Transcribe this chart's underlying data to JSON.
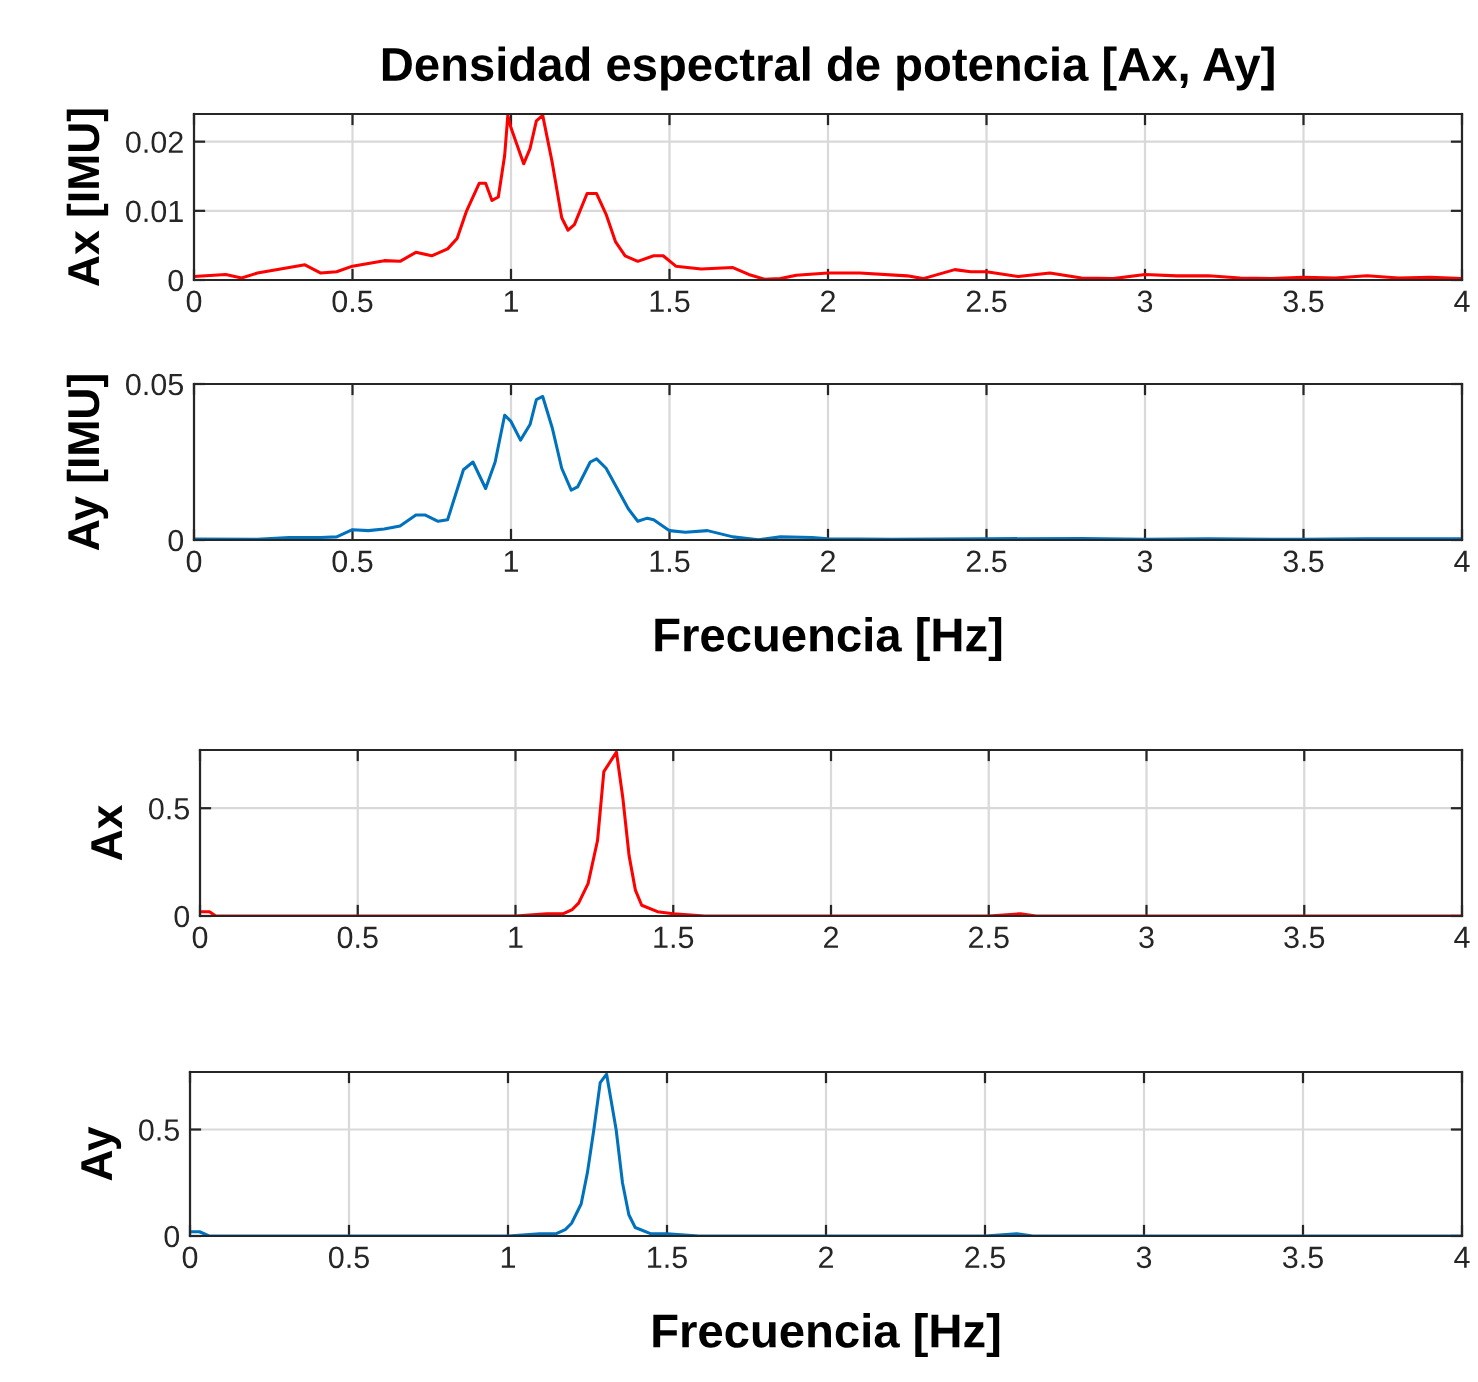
{
  "chart_data": [
    {
      "type": "line",
      "title": "Densidad espectral de potencia [Ax, Ay]",
      "ylabel": "Ax [IMU]",
      "xlim": [
        0,
        4
      ],
      "xticks": [
        0,
        0.5,
        1,
        1.5,
        2,
        2.5,
        3,
        3.5,
        4
      ],
      "ylim": [
        0,
        0.024
      ],
      "yticks": [
        0,
        0.01,
        0.02
      ],
      "grid": true,
      "x": [
        0,
        0.1,
        0.15,
        0.2,
        0.3,
        0.35,
        0.4,
        0.45,
        0.5,
        0.6,
        0.65,
        0.7,
        0.75,
        0.8,
        0.83,
        0.86,
        0.9,
        0.92,
        0.94,
        0.96,
        0.98,
        0.99,
        1.0,
        1.04,
        1.06,
        1.08,
        1.1,
        1.13,
        1.16,
        1.18,
        1.2,
        1.24,
        1.27,
        1.3,
        1.33,
        1.36,
        1.4,
        1.45,
        1.48,
        1.52,
        1.6,
        1.7,
        1.75,
        1.8,
        1.85,
        1.9,
        2.0,
        2.1,
        2.25,
        2.3,
        2.4,
        2.45,
        2.5,
        2.6,
        2.7,
        2.8,
        2.9,
        3.0,
        3.1,
        3.2,
        3.3,
        3.4,
        3.5,
        3.6,
        3.7,
        3.8,
        3.9,
        4.0
      ],
      "series": [
        {
          "color": "#ff0000",
          "values": [
            0.0005,
            0.0008,
            0.0003,
            0.001,
            0.0018,
            0.0022,
            0.001,
            0.0012,
            0.002,
            0.0028,
            0.0027,
            0.004,
            0.0035,
            0.0045,
            0.006,
            0.01,
            0.014,
            0.014,
            0.0115,
            0.012,
            0.018,
            0.0238,
            0.022,
            0.0168,
            0.019,
            0.023,
            0.0238,
            0.017,
            0.009,
            0.0072,
            0.008,
            0.0125,
            0.0125,
            0.0095,
            0.0055,
            0.0035,
            0.0027,
            0.0035,
            0.0035,
            0.002,
            0.0016,
            0.0018,
            0.0008,
            0.0001,
            0.0002,
            0.0007,
            0.001,
            0.001,
            0.0006,
            0.0002,
            0.0015,
            0.0012,
            0.0012,
            0.0005,
            0.001,
            0.0003,
            0.0002,
            0.0008,
            0.0006,
            0.0006,
            0.0003,
            0.0002,
            0.0004,
            0.0003,
            0.0006,
            0.0003,
            0.0004,
            0.0002
          ]
        }
      ]
    },
    {
      "type": "line",
      "ylabel": "Ay [IMU]",
      "xlabel": "Frecuencia [Hz]",
      "xlim": [
        0,
        4
      ],
      "xticks": [
        0,
        0.5,
        1,
        1.5,
        2,
        2.5,
        3,
        3.5,
        4
      ],
      "ylim": [
        0,
        0.05
      ],
      "yticks": [
        0,
        0.05
      ],
      "grid": true,
      "x": [
        0,
        0.2,
        0.3,
        0.4,
        0.45,
        0.5,
        0.55,
        0.6,
        0.65,
        0.7,
        0.73,
        0.77,
        0.8,
        0.85,
        0.88,
        0.92,
        0.95,
        0.98,
        1.0,
        1.03,
        1.06,
        1.08,
        1.1,
        1.13,
        1.16,
        1.19,
        1.21,
        1.25,
        1.27,
        1.3,
        1.37,
        1.4,
        1.43,
        1.45,
        1.5,
        1.55,
        1.62,
        1.7,
        1.78,
        1.85,
        1.95,
        2.0,
        2.2,
        2.5,
        2.8,
        3.0,
        3.2,
        3.5,
        3.7,
        4.0
      ],
      "series": [
        {
          "color": "#0072bd",
          "values": [
            0.0003,
            0.0002,
            0.0008,
            0.0008,
            0.001,
            0.0033,
            0.003,
            0.0035,
            0.0045,
            0.008,
            0.008,
            0.006,
            0.0065,
            0.0225,
            0.025,
            0.0165,
            0.025,
            0.04,
            0.038,
            0.032,
            0.037,
            0.045,
            0.046,
            0.036,
            0.023,
            0.016,
            0.017,
            0.025,
            0.026,
            0.023,
            0.01,
            0.006,
            0.007,
            0.0065,
            0.003,
            0.0025,
            0.003,
            0.001,
            0.0001,
            0.001,
            0.0008,
            0.0004,
            0.0002,
            0.0004,
            0.0005,
            0.0002,
            0.0004,
            0.0002,
            0.0004,
            0.0004
          ]
        }
      ]
    },
    {
      "type": "line",
      "ylabel": "Ax",
      "xlim": [
        0,
        4
      ],
      "xticks": [
        0,
        0.5,
        1,
        1.5,
        2,
        2.5,
        3,
        3.5,
        4
      ],
      "ylim": [
        0,
        0.77
      ],
      "yticks": [
        0,
        0.5
      ],
      "grid": true,
      "x": [
        0,
        0.03,
        0.05,
        0.5,
        1.0,
        1.1,
        1.15,
        1.18,
        1.2,
        1.23,
        1.26,
        1.28,
        1.32,
        1.34,
        1.36,
        1.38,
        1.4,
        1.45,
        1.5,
        1.6,
        2.0,
        2.5,
        2.6,
        2.65,
        3.0,
        4.0
      ],
      "series": [
        {
          "color": "#ff0000",
          "values": [
            0.02,
            0.02,
            0,
            0,
            0,
            0.01,
            0.01,
            0.03,
            0.06,
            0.15,
            0.35,
            0.67,
            0.76,
            0.55,
            0.28,
            0.12,
            0.05,
            0.02,
            0.01,
            0,
            0,
            0,
            0.01,
            0,
            0,
            0
          ]
        }
      ]
    },
    {
      "type": "line",
      "ylabel": "Ay",
      "xlabel": "Frecuencia [Hz]",
      "xlim": [
        0,
        4
      ],
      "xticks": [
        0,
        0.5,
        1,
        1.5,
        2,
        2.5,
        3,
        3.5,
        4
      ],
      "ylim": [
        0,
        0.77
      ],
      "yticks": [
        0,
        0.5
      ],
      "grid": true,
      "x": [
        0,
        0.03,
        0.06,
        0.5,
        1.0,
        1.1,
        1.15,
        1.18,
        1.2,
        1.23,
        1.25,
        1.27,
        1.29,
        1.31,
        1.34,
        1.36,
        1.38,
        1.4,
        1.45,
        1.5,
        1.6,
        2.0,
        2.5,
        2.6,
        2.65,
        3.0,
        4.0
      ],
      "series": [
        {
          "color": "#0072bd",
          "values": [
            0.02,
            0.02,
            0,
            0,
            0,
            0.01,
            0.01,
            0.03,
            0.06,
            0.15,
            0.3,
            0.5,
            0.72,
            0.76,
            0.5,
            0.25,
            0.1,
            0.04,
            0.01,
            0.01,
            0,
            0,
            0,
            0.01,
            0,
            0,
            0
          ]
        }
      ]
    }
  ]
}
